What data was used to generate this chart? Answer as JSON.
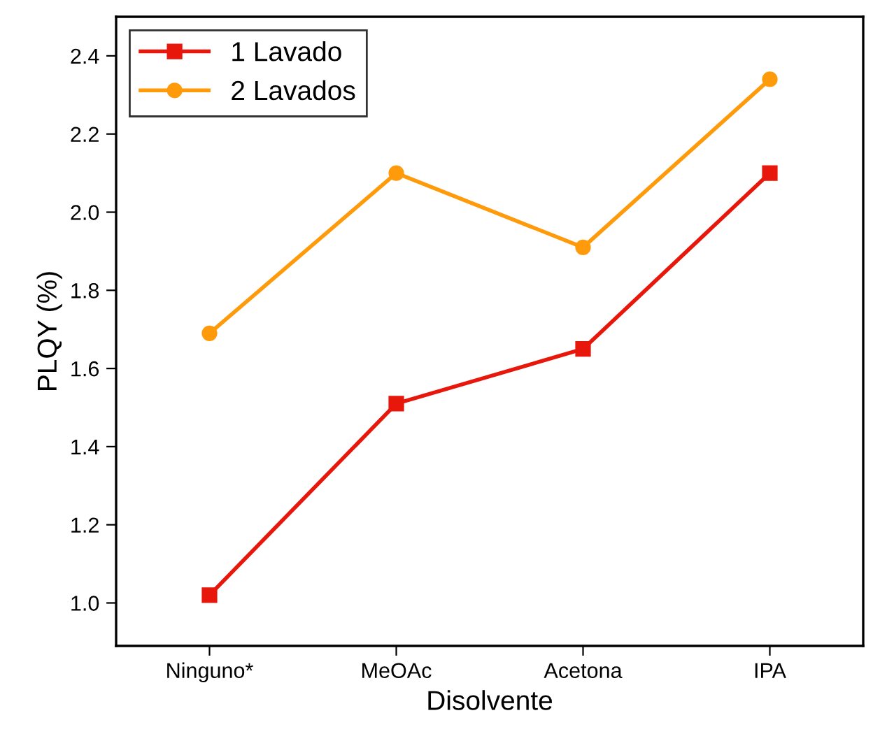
{
  "chart_data": {
    "type": "line",
    "xlabel": "Disolvente",
    "ylabel": "PLQY (%)",
    "categories": [
      "Ninguno*",
      "MeOAc",
      "Acetona",
      "IPA"
    ],
    "series": [
      {
        "name": "1 Lavado",
        "color": "#e8170c",
        "values": [
          1.02,
          1.51,
          1.65,
          2.1
        ],
        "marker": "square"
      },
      {
        "name": "2 Lavados",
        "color": "#ff9a0a",
        "values": [
          1.69,
          2.1,
          1.91,
          2.34
        ],
        "marker": "circle"
      }
    ],
    "ylim": [
      0.89,
      2.5
    ],
    "yticks": [
      {
        "value": 1.0,
        "label": "1.0"
      },
      1.2,
      1.4,
      1.6,
      1.8,
      {
        "value": 2.0,
        "label": "2.0"
      },
      2.2,
      2.4
    ],
    "grid": false,
    "legend": "top left",
    "line_style": "solid"
  }
}
